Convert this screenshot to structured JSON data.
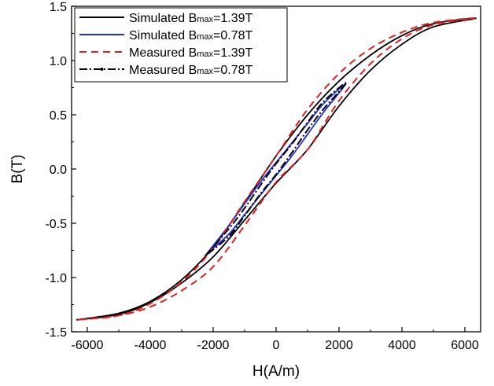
{
  "chart_data": {
    "type": "line",
    "title": "",
    "xlabel": "H(A/m)",
    "ylabel": "B(T)",
    "xlim": [
      -6500,
      6500
    ],
    "ylim": [
      -1.5,
      1.5
    ],
    "xticks": [
      -6000,
      -4000,
      -2000,
      0,
      2000,
      4000,
      6000
    ],
    "xtick_labels": [
      "-6000",
      "-4000",
      "-2000",
      "0",
      "2000",
      "4000",
      "6000"
    ],
    "yticks": [
      -1.5,
      -1.0,
      -0.5,
      0.0,
      0.5,
      1.0,
      1.5
    ],
    "ytick_labels": [
      "-1.5",
      "-1.0",
      "-0.5",
      "0.0",
      "0.5",
      "1.0",
      "1.5"
    ],
    "grid": false,
    "legend_position": "top-left",
    "series": [
      {
        "name_prefix": "Simulated",
        "name_sub": "max",
        "name_value": "=1.39T",
        "color": "#000000",
        "style": "solid",
        "upper": [
          [
            -6350,
            -1.39
          ],
          [
            -5000,
            -1.33
          ],
          [
            -4000,
            -1.22
          ],
          [
            -3000,
            -1.02
          ],
          [
            -2000,
            -0.72
          ],
          [
            -1000,
            -0.31
          ],
          [
            0,
            0.12
          ],
          [
            1000,
            0.5
          ],
          [
            2000,
            0.81
          ],
          [
            3000,
            1.05
          ],
          [
            4000,
            1.23
          ],
          [
            5000,
            1.34
          ],
          [
            6350,
            1.39
          ]
        ],
        "lower": [
          [
            6350,
            1.39
          ],
          [
            5000,
            1.31
          ],
          [
            4000,
            1.15
          ],
          [
            3000,
            0.91
          ],
          [
            2000,
            0.58
          ],
          [
            1000,
            0.18
          ],
          [
            0,
            -0.13
          ],
          [
            -1000,
            -0.47
          ],
          [
            -2000,
            -0.81
          ],
          [
            -3000,
            -1.05
          ],
          [
            -4000,
            -1.23
          ],
          [
            -5000,
            -1.34
          ],
          [
            -6350,
            -1.39
          ]
        ]
      },
      {
        "name_prefix": "Simulated",
        "name_sub": "max",
        "name_value": "=0.78T",
        "color": "#1f2fd6",
        "style": "solid",
        "upper": [
          [
            -2200,
            -0.78
          ],
          [
            -1500,
            -0.52
          ],
          [
            -1000,
            -0.32
          ],
          [
            -500,
            -0.12
          ],
          [
            0,
            0.06
          ],
          [
            500,
            0.24
          ],
          [
            1000,
            0.42
          ],
          [
            1500,
            0.6
          ],
          [
            2200,
            0.78
          ]
        ],
        "lower": [
          [
            2200,
            0.78
          ],
          [
            1500,
            0.52
          ],
          [
            1000,
            0.32
          ],
          [
            500,
            0.12
          ],
          [
            0,
            -0.06
          ],
          [
            -500,
            -0.24
          ],
          [
            -1000,
            -0.42
          ],
          [
            -1500,
            -0.6
          ],
          [
            -2200,
            -0.78
          ]
        ]
      },
      {
        "name_prefix": "Measured",
        "name_sub": "max",
        "name_value": "=1.39T",
        "color": "#e02020",
        "style": "dashed",
        "upper": [
          [
            -6300,
            -1.39
          ],
          [
            -5000,
            -1.35
          ],
          [
            -4000,
            -1.24
          ],
          [
            -3000,
            -1.04
          ],
          [
            -2000,
            -0.73
          ],
          [
            -1000,
            -0.3
          ],
          [
            0,
            0.12
          ],
          [
            1000,
            0.55
          ],
          [
            2000,
            0.88
          ],
          [
            3000,
            1.11
          ],
          [
            4000,
            1.26
          ],
          [
            5000,
            1.35
          ],
          [
            6300,
            1.39
          ]
        ],
        "lower": [
          [
            6300,
            1.39
          ],
          [
            5000,
            1.33
          ],
          [
            4000,
            1.2
          ],
          [
            3000,
            0.97
          ],
          [
            2000,
            0.63
          ],
          [
            1000,
            0.18
          ],
          [
            0,
            -0.12
          ],
          [
            -1000,
            -0.52
          ],
          [
            -2000,
            -0.9
          ],
          [
            -3000,
            -1.12
          ],
          [
            -4000,
            -1.27
          ],
          [
            -5000,
            -1.35
          ],
          [
            -6300,
            -1.39
          ]
        ]
      },
      {
        "name_prefix": "Measured",
        "name_sub": "max",
        "name_value": "=0.78T",
        "color": "#000000",
        "style": "dashdot",
        "upper": [
          [
            -2250,
            -0.8
          ],
          [
            -1500,
            -0.55
          ],
          [
            -1000,
            -0.36
          ],
          [
            -500,
            -0.15
          ],
          [
            0,
            0.05
          ],
          [
            500,
            0.23
          ],
          [
            1000,
            0.43
          ],
          [
            1500,
            0.62
          ],
          [
            2250,
            0.8
          ]
        ],
        "lower": [
          [
            2250,
            0.8
          ],
          [
            1500,
            0.55
          ],
          [
            1000,
            0.36
          ],
          [
            500,
            0.15
          ],
          [
            0,
            -0.05
          ],
          [
            -500,
            -0.23
          ],
          [
            -1000,
            -0.43
          ],
          [
            -1500,
            -0.62
          ],
          [
            -2250,
            -0.8
          ]
        ]
      }
    ]
  }
}
